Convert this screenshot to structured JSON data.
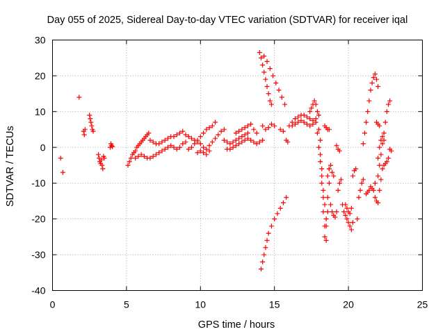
{
  "chart_data": {
    "type": "scatter",
    "title": "Day 055 of 2025, Sidereal Day-to-day VTEC variation (SDTVAR) for receiver iqal",
    "xlabel": "GPS time / hours",
    "ylabel": "SDTVAR / TECUs",
    "xlim": [
      0,
      25
    ],
    "ylim": [
      -40,
      30
    ],
    "x_ticks": [
      0,
      5,
      10,
      15,
      20,
      25
    ],
    "y_ticks": [
      -40,
      -30,
      -20,
      -10,
      0,
      10,
      20,
      30
    ],
    "x_tick_labels": [
      "0",
      "5",
      "10",
      "15",
      "20",
      "25"
    ],
    "y_tick_labels": [
      "-40",
      "-30",
      "-20",
      "-10",
      "0",
      "10",
      "20",
      "30"
    ],
    "grid": true,
    "marker": "+",
    "color": "#ff0000",
    "series": [
      {
        "values": [
          [
            0.55,
            -3
          ],
          [
            0.7,
            -7
          ],
          [
            1.8,
            14
          ],
          [
            2.1,
            4.5
          ],
          [
            2.15,
            3.5
          ],
          [
            2.2,
            5
          ],
          [
            2.5,
            9
          ],
          [
            2.55,
            8
          ],
          [
            2.6,
            7
          ],
          [
            2.65,
            6
          ],
          [
            2.7,
            5
          ],
          [
            2.75,
            4.5
          ],
          [
            3.1,
            -2
          ],
          [
            3.15,
            -3
          ],
          [
            3.2,
            -4
          ],
          [
            3.25,
            -4.5
          ],
          [
            3.3,
            -3.5
          ],
          [
            3.35,
            -5
          ],
          [
            3.4,
            -6
          ],
          [
            3.45,
            -2.5
          ],
          [
            3.5,
            -3
          ],
          [
            3.9,
            0
          ],
          [
            3.95,
            1
          ],
          [
            4.0,
            0.5
          ],
          [
            4.05,
            0.2
          ],
          [
            5.1,
            -5
          ],
          [
            5.2,
            -4
          ],
          [
            5.3,
            -3
          ],
          [
            5.4,
            -2
          ],
          [
            5.5,
            -1.5
          ],
          [
            5.6,
            -1
          ],
          [
            5.7,
            0
          ],
          [
            5.8,
            0.5
          ],
          [
            5.9,
            1
          ],
          [
            6.0,
            1.5
          ],
          [
            6.1,
            2
          ],
          [
            6.2,
            2.5
          ],
          [
            6.3,
            3
          ],
          [
            6.4,
            3.5
          ],
          [
            6.5,
            4
          ],
          [
            5.6,
            -3
          ],
          [
            5.8,
            -2.5
          ],
          [
            6.0,
            -2
          ],
          [
            6.2,
            -2.5
          ],
          [
            6.4,
            -3
          ],
          [
            6.6,
            -3
          ],
          [
            6.8,
            -2.5
          ],
          [
            7.0,
            -2
          ],
          [
            7.2,
            -1.5
          ],
          [
            6.6,
            2
          ],
          [
            6.8,
            1.5
          ],
          [
            7.0,
            1
          ],
          [
            7.2,
            1
          ],
          [
            7.4,
            1.5
          ],
          [
            7.6,
            2
          ],
          [
            7.8,
            2.5
          ],
          [
            8.0,
            3
          ],
          [
            8.2,
            3
          ],
          [
            7.4,
            -1
          ],
          [
            7.6,
            -0.5
          ],
          [
            7.8,
            0
          ],
          [
            8.0,
            0.5
          ],
          [
            8.2,
            0
          ],
          [
            8.4,
            -0.5
          ],
          [
            8.6,
            0
          ],
          [
            8.8,
            1
          ],
          [
            9.0,
            1.5
          ],
          [
            8.4,
            3.5
          ],
          [
            8.6,
            4
          ],
          [
            8.8,
            4.5
          ],
          [
            9.0,
            3.5
          ],
          [
            9.2,
            3
          ],
          [
            9.4,
            2.5
          ],
          [
            9.6,
            2
          ],
          [
            9.8,
            1.5
          ],
          [
            10.0,
            1
          ],
          [
            9.2,
            -0.5
          ],
          [
            9.4,
            0
          ],
          [
            9.6,
            1
          ],
          [
            9.8,
            2
          ],
          [
            10.0,
            3
          ],
          [
            10.2,
            4
          ],
          [
            10.4,
            5
          ],
          [
            10.6,
            5.5
          ],
          [
            10.8,
            6
          ],
          [
            11.0,
            7
          ],
          [
            10.2,
            0
          ],
          [
            10.4,
            -0.5
          ],
          [
            10.6,
            0.5
          ],
          [
            10.8,
            1.5
          ],
          [
            11.0,
            2.5
          ],
          [
            11.2,
            3.5
          ],
          [
            11.4,
            4.5
          ],
          [
            11.6,
            5
          ],
          [
            9.8,
            -1.5
          ],
          [
            10.0,
            -1
          ],
          [
            10.2,
            -1.5
          ],
          [
            10.4,
            -2
          ],
          [
            10.6,
            -1
          ],
          [
            11.6,
            2
          ],
          [
            11.8,
            1.5
          ],
          [
            12.0,
            1
          ],
          [
            12.2,
            1.5
          ],
          [
            12.4,
            2
          ],
          [
            12.6,
            2.5
          ],
          [
            12.8,
            3
          ],
          [
            13.0,
            3.5
          ],
          [
            13.2,
            4
          ],
          [
            11.8,
            -0.5
          ],
          [
            12.0,
            -0.5
          ],
          [
            12.2,
            0
          ],
          [
            12.4,
            0.5
          ],
          [
            12.6,
            1
          ],
          [
            12.8,
            1.5
          ],
          [
            13.0,
            2
          ],
          [
            13.2,
            2.5
          ],
          [
            12.4,
            4
          ],
          [
            12.6,
            4.5
          ],
          [
            12.8,
            5
          ],
          [
            13.0,
            5.5
          ],
          [
            13.2,
            6
          ],
          [
            13.4,
            6.5
          ],
          [
            13.6,
            5
          ],
          [
            13.8,
            4
          ],
          [
            13.4,
            2
          ],
          [
            13.6,
            1.5
          ],
          [
            13.8,
            1
          ],
          [
            14.0,
            1.5
          ],
          [
            14.2,
            2
          ],
          [
            14.0,
            26.5
          ],
          [
            14.1,
            25
          ],
          [
            14.2,
            23
          ],
          [
            14.3,
            21
          ],
          [
            14.4,
            19
          ],
          [
            14.5,
            17
          ],
          [
            14.6,
            15
          ],
          [
            14.7,
            13
          ],
          [
            14.8,
            12
          ],
          [
            14.3,
            25.5
          ],
          [
            14.5,
            24
          ],
          [
            14.7,
            22
          ],
          [
            14.9,
            20
          ],
          [
            15.1,
            18
          ],
          [
            15.3,
            16
          ],
          [
            15.5,
            14
          ],
          [
            15.7,
            12
          ],
          [
            14.1,
            -34
          ],
          [
            14.2,
            -32
          ],
          [
            14.3,
            -30
          ],
          [
            14.4,
            -28
          ],
          [
            14.5,
            -26
          ],
          [
            14.6,
            -24
          ],
          [
            14.8,
            -22
          ],
          [
            15.0,
            -20
          ],
          [
            15.2,
            -18.5
          ],
          [
            15.4,
            -17
          ],
          [
            15.6,
            -15.5
          ],
          [
            15.8,
            -14
          ],
          [
            14.2,
            6
          ],
          [
            14.4,
            5
          ],
          [
            14.6,
            5.5
          ],
          [
            14.8,
            6.5
          ],
          [
            15.0,
            6
          ],
          [
            15.4,
            5
          ],
          [
            15.6,
            4.5
          ],
          [
            15.8,
            2
          ],
          [
            15.9,
            1.5
          ],
          [
            16.0,
            6
          ],
          [
            16.2,
            7
          ],
          [
            16.4,
            8
          ],
          [
            16.6,
            8.5
          ],
          [
            16.8,
            9
          ],
          [
            17.0,
            9
          ],
          [
            17.2,
            8.5
          ],
          [
            17.4,
            8
          ],
          [
            17.6,
            7.5
          ],
          [
            16.2,
            6
          ],
          [
            16.4,
            6.5
          ],
          [
            16.6,
            7
          ],
          [
            16.8,
            7.5
          ],
          [
            17.0,
            7
          ],
          [
            17.2,
            6.5
          ],
          [
            17.4,
            6
          ],
          [
            17.6,
            6.5
          ],
          [
            17.8,
            7
          ],
          [
            17.4,
            10
          ],
          [
            17.5,
            11
          ],
          [
            17.6,
            12
          ],
          [
            17.7,
            13
          ],
          [
            17.8,
            12
          ],
          [
            17.9,
            10
          ],
          [
            18.0,
            9
          ],
          [
            18.0,
            5
          ],
          [
            18.1,
            2
          ],
          [
            18.1,
            -2
          ],
          [
            18.2,
            -6
          ],
          [
            18.2,
            -10
          ],
          [
            18.3,
            -14
          ],
          [
            18.3,
            -18
          ],
          [
            18.4,
            -22
          ],
          [
            18.4,
            -25
          ],
          [
            18.5,
            -26
          ],
          [
            18.5,
            -22
          ],
          [
            18.6,
            -18
          ],
          [
            18.6,
            -14
          ],
          [
            18.7,
            -10
          ],
          [
            18.7,
            -6
          ],
          [
            17.8,
            8
          ],
          [
            17.9,
            4
          ],
          [
            18.0,
            0
          ],
          [
            18.1,
            -4
          ],
          [
            18.2,
            -8
          ],
          [
            18.3,
            -12
          ],
          [
            18.4,
            -16
          ],
          [
            18.5,
            -20
          ],
          [
            18.6,
            -8
          ],
          [
            18.7,
            -6
          ],
          [
            18.8,
            -5
          ],
          [
            18.9,
            -7
          ],
          [
            19.0,
            -8
          ],
          [
            18.8,
            -16
          ],
          [
            18.9,
            -18
          ],
          [
            19.0,
            -19
          ],
          [
            19.1,
            -19.5
          ],
          [
            19.2,
            -18
          ],
          [
            18.4,
            6
          ],
          [
            18.5,
            5.5
          ],
          [
            18.6,
            5
          ],
          [
            18.7,
            5
          ],
          [
            19.3,
            -12
          ],
          [
            19.4,
            -10
          ],
          [
            19.5,
            -9
          ],
          [
            19.2,
            0.5
          ],
          [
            19.3,
            -0.5
          ],
          [
            19.4,
            -1
          ],
          [
            19.6,
            -16
          ],
          [
            19.7,
            -18
          ],
          [
            19.8,
            -19
          ],
          [
            19.9,
            -20
          ],
          [
            20.0,
            -21
          ],
          [
            20.1,
            -22
          ],
          [
            20.2,
            -23
          ],
          [
            20.3,
            -21
          ],
          [
            19.8,
            -16
          ],
          [
            19.9,
            -17
          ],
          [
            20.0,
            -18
          ],
          [
            20.1,
            -18.5
          ],
          [
            20.2,
            -17
          ],
          [
            20.3,
            -8
          ],
          [
            20.4,
            -6.5
          ],
          [
            20.5,
            -6
          ],
          [
            20.6,
            -20
          ],
          [
            20.7,
            -14
          ],
          [
            20.8,
            -12
          ],
          [
            20.9,
            -10
          ],
          [
            21.0,
            -9
          ],
          [
            21.0,
            1
          ],
          [
            21.1,
            4
          ],
          [
            21.2,
            7
          ],
          [
            21.3,
            10
          ],
          [
            21.4,
            13
          ],
          [
            21.5,
            16
          ],
          [
            21.6,
            18
          ],
          [
            21.7,
            19.5
          ],
          [
            21.8,
            20.5
          ],
          [
            21.9,
            19
          ],
          [
            22.0,
            17
          ],
          [
            21.2,
            -13
          ],
          [
            21.3,
            -12.5
          ],
          [
            21.4,
            -12
          ],
          [
            21.5,
            -11
          ],
          [
            21.6,
            -11.5
          ],
          [
            21.7,
            -12
          ],
          [
            21.8,
            -10
          ],
          [
            21.9,
            7
          ],
          [
            22.0,
            6.5
          ],
          [
            22.1,
            6
          ],
          [
            21.8,
            -14
          ],
          [
            21.9,
            -15
          ],
          [
            22.0,
            -15.5
          ],
          [
            22.1,
            -12
          ],
          [
            22.2,
            -9
          ],
          [
            22.3,
            -6
          ],
          [
            22.4,
            -5
          ],
          [
            22.5,
            -4.5
          ],
          [
            22.6,
            -4
          ],
          [
            22.7,
            -3
          ],
          [
            22.0,
            -8
          ],
          [
            22.1,
            -5
          ],
          [
            22.2,
            -2
          ],
          [
            22.3,
            1
          ],
          [
            22.4,
            4
          ],
          [
            22.5,
            7
          ],
          [
            22.6,
            10
          ],
          [
            22.7,
            12
          ],
          [
            22.8,
            13
          ],
          [
            22.0,
            -3
          ],
          [
            22.1,
            0
          ],
          [
            22.2,
            2
          ],
          [
            22.3,
            3
          ],
          [
            22.4,
            2
          ],
          [
            22.8,
            -0.5
          ],
          [
            22.9,
            -1
          ]
        ]
      }
    ]
  }
}
